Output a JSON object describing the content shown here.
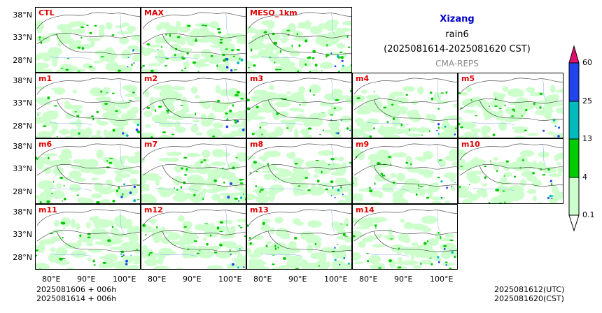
{
  "title": {
    "region": "Xizang",
    "variable": "rain6",
    "period": "(2025081614-2025081620 CST)",
    "system": "CMA-REPS"
  },
  "panels": [
    "CTL",
    "MAX",
    "MESO_1km",
    "m1",
    "m2",
    "m3",
    "m4",
    "m5",
    "m6",
    "m7",
    "m8",
    "m9",
    "m10",
    "m11",
    "m12",
    "m13",
    "m14"
  ],
  "lat_ticks": [
    "38°N",
    "33°N",
    "28°N"
  ],
  "lon_ticks": [
    "80°E",
    "90°E",
    "100°E"
  ],
  "init_info": {
    "line1": "2025081606  +  006h",
    "line2": "2025081614  +  006h"
  },
  "valid_info": {
    "utc": "2025081612(UTC)",
    "cst": "2025081620(CST)"
  },
  "colorbar": {
    "levels": [
      "0.1",
      "4",
      "13",
      "25",
      "60"
    ],
    "colors": [
      "#ccffcc",
      "#00cc00",
      "#00bbbb",
      "#2244ee",
      "#e0106e"
    ]
  }
}
